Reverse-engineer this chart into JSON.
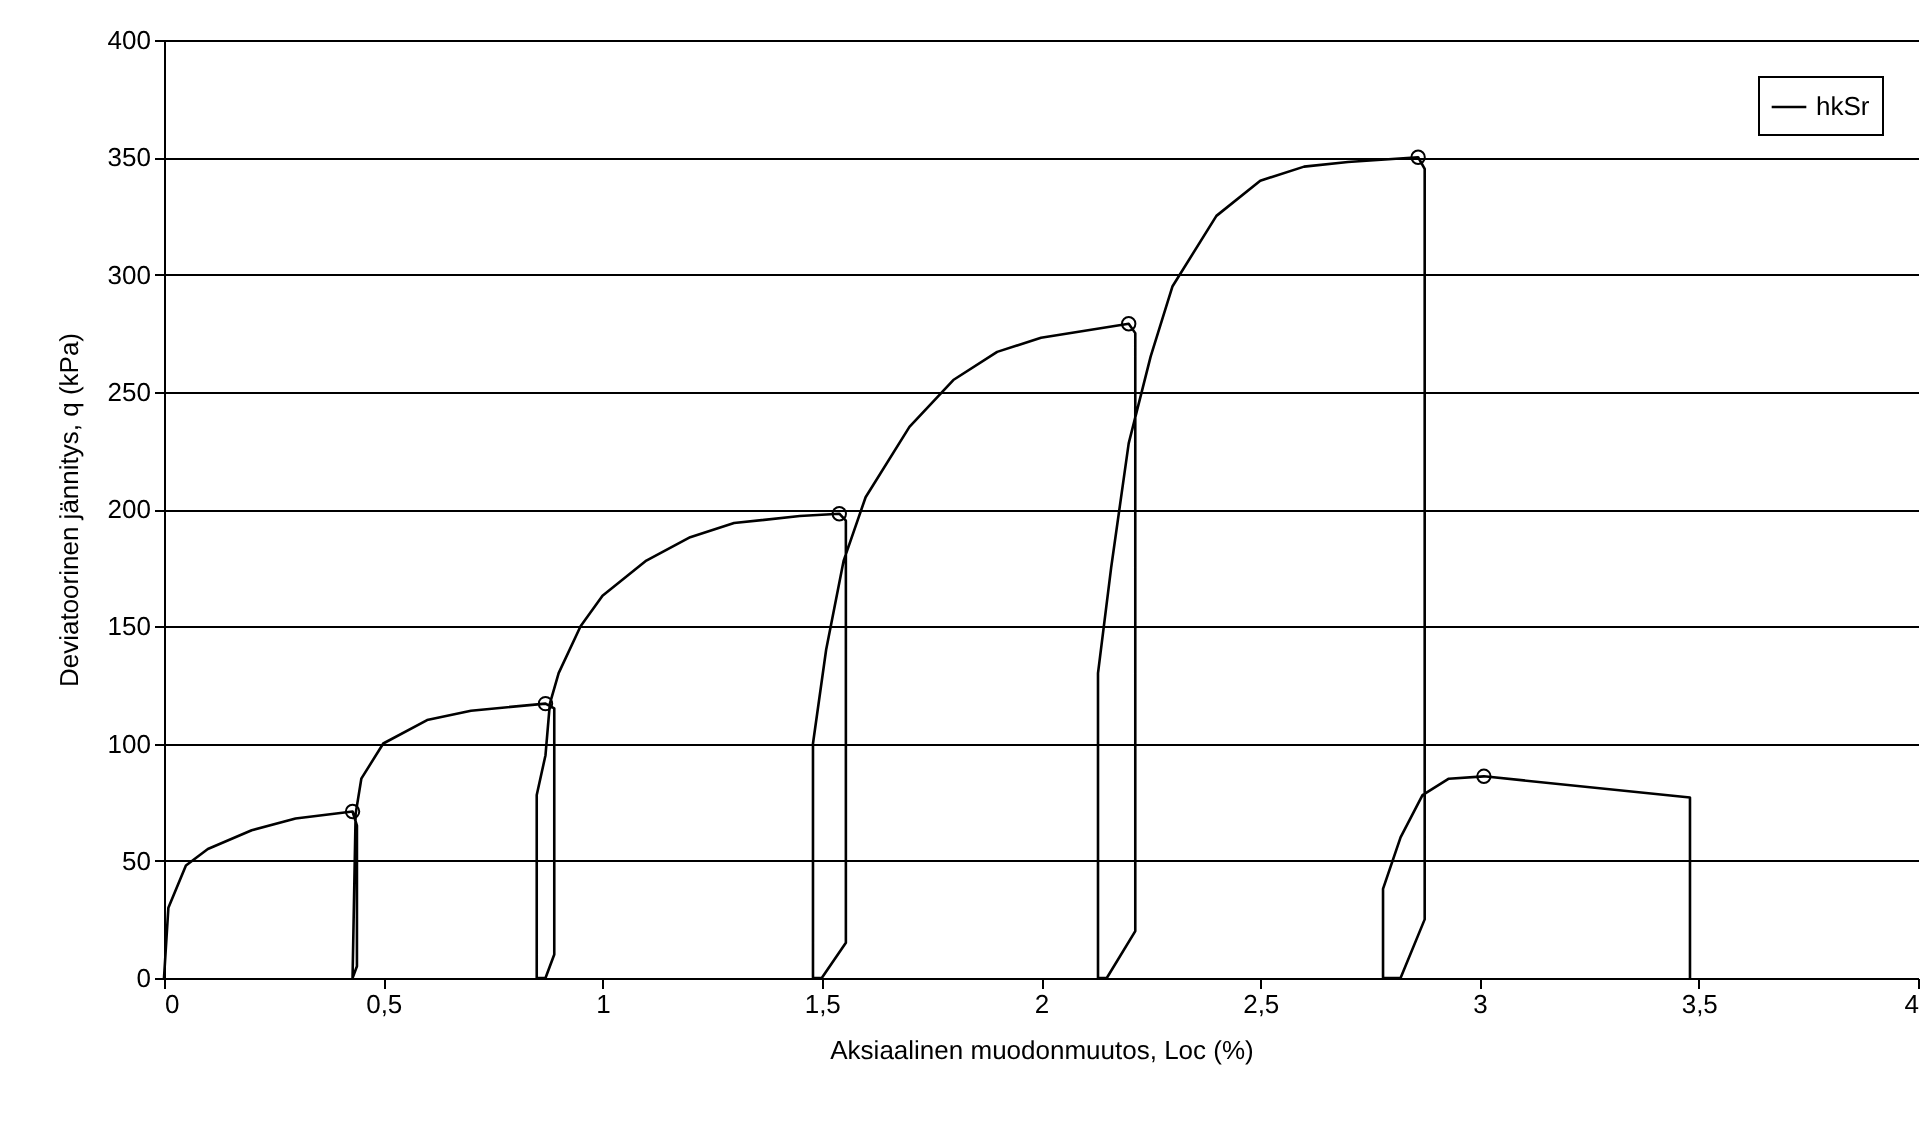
{
  "chart_data": {
    "type": "line",
    "xlabel": "Aksiaalinen muodonmuutos, Loc (%)",
    "ylabel": "Deviatoorinen jännitys, q  (kPa)",
    "series": [
      {
        "name": "hkSr",
        "color": "#000000",
        "x": [
          0,
          0.01,
          0.05,
          0.1,
          0.2,
          0.3,
          0.43,
          0.44,
          0.44,
          0.43,
          0.43,
          0.437,
          0.45,
          0.5,
          0.6,
          0.7,
          0.87,
          0.89,
          0.89,
          0.87,
          0.85,
          0.85,
          0.87,
          0.88,
          0.9,
          0.95,
          1.0,
          1.1,
          1.2,
          1.3,
          1.45,
          1.54,
          1.555,
          1.555,
          1.5,
          1.48,
          1.48,
          1.51,
          1.55,
          1.6,
          1.7,
          1.8,
          1.9,
          2.0,
          2.2,
          2.215,
          2.215,
          2.15,
          2.13,
          2.13,
          2.16,
          2.2,
          2.25,
          2.3,
          2.4,
          2.5,
          2.6,
          2.7,
          2.86,
          2.875,
          2.875,
          2.82,
          2.78,
          2.78,
          2.82,
          2.87,
          2.93,
          3.01,
          3.48,
          3.48
        ],
        "values": [
          0,
          30,
          48,
          55,
          63,
          68,
          71,
          65,
          5,
          0,
          0,
          70,
          85,
          100,
          110,
          114,
          117,
          115,
          10,
          0,
          0,
          78,
          95,
          117,
          130,
          150,
          163,
          178,
          188,
          194,
          197,
          198,
          195,
          15,
          0,
          0,
          100,
          140,
          178,
          205,
          235,
          255,
          267,
          273,
          279,
          275,
          20,
          0,
          0,
          130,
          175,
          228,
          265,
          295,
          325,
          340,
          346,
          348,
          350,
          345,
          25,
          0,
          0,
          38,
          60,
          78,
          85,
          86,
          77,
          0
        ]
      },
      {
        "type": "scatter",
        "marker": "circle",
        "color": "#000000",
        "x": [
          0.43,
          0.87,
          1.54,
          2.2,
          2.86,
          3.01
        ],
        "values": [
          71,
          117,
          198,
          279,
          350,
          86
        ]
      }
    ],
    "xlim": [
      0,
      4
    ],
    "xticks": [
      0,
      {
        "value": 0.5,
        "label": "0,5"
      },
      1,
      {
        "value": 1.5,
        "label": "1,5"
      },
      2,
      {
        "value": 2.5,
        "label": "2,5"
      },
      3,
      {
        "value": 3.5,
        "label": "3,5"
      },
      4
    ],
    "ylim": [
      0,
      400
    ],
    "yticks": [
      0,
      50,
      100,
      150,
      200,
      250,
      300,
      350,
      400
    ],
    "grid": "y",
    "legend": "top right",
    "line_style": "solid"
  }
}
